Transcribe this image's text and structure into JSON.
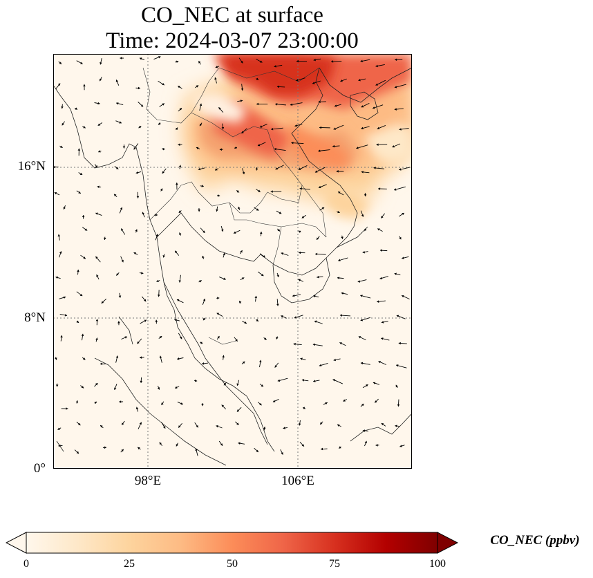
{
  "title": {
    "line1": "CO_NEC at surface",
    "line2": "Time: 2024-03-07 23:00:00"
  },
  "map": {
    "variable": "CO_NEC",
    "units": "ppbv",
    "lat_labels": [
      "16°N",
      "8°N",
      "0°"
    ],
    "lon_labels": [
      "98°E",
      "106°E"
    ],
    "lat_gridlines": [
      16,
      8
    ],
    "lon_gridlines": [
      98,
      106
    ],
    "extent": {
      "lon_min": 93,
      "lon_max": 112,
      "lat_min": 0,
      "lat_max": 22
    },
    "wind_vectors": "shown",
    "colormap": "OrRd",
    "high_concentration_region": "northern Laos / Vietnam / southern China, up to ~65 ppbv"
  },
  "colorbar": {
    "label": "CO_NEC (ppbv)",
    "min": 0,
    "max": 100,
    "extend": "both",
    "ticks": [
      "0",
      "25",
      "50",
      "75",
      "100"
    ],
    "colors": [
      "#fff7ec",
      "#fee8c8",
      "#fdd49e",
      "#fdbb84",
      "#fc8d59",
      "#ef6548",
      "#d7301f",
      "#b30000",
      "#7f0000"
    ]
  }
}
